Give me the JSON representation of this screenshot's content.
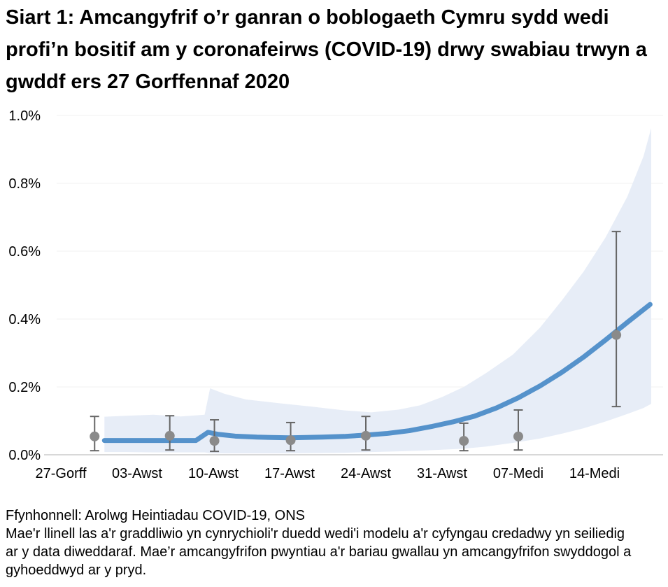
{
  "page": {
    "title": "Siart 1: Amcangyfrif o’r ganran o boblogaeth Cymru sydd wedi profi’n bositif am y coronafeirws (COVID-19) drwy swabiau trwyn a gwddf ers 27 Gorffennaf 2020",
    "source_line": "Ffynhonnell: Arolwg Heintiadau COVID-19, ONS",
    "note_line": "Mae'r llinell las a'r graddliwio yn cynrychioli'r duedd wedi'i modelu a'r cyfyngau credadwy yn seiliedig ar y data diweddaraf. Mae’r amcangyfrifon pwyntiau a'r bariau gwallau yn amcangyfrifon swyddogol a gyhoeddwyd ar y pryd."
  },
  "chart_data": {
    "type": "line",
    "title": "Siart 1: Amcangyfrif o’r ganran o boblogaeth Cymru sydd wedi profi’n bositif am y coronafeirws (COVID-19) drwy swabiau trwyn a gwddf ers 27 Gorffennaf 2020",
    "xlabel": "",
    "ylabel": "",
    "x_unit": "dyddiau ers 27 Gorffennaf 2020",
    "ylim": [
      0,
      1.0
    ],
    "grid": true,
    "legend": "none",
    "y_ticks": [
      {
        "value": 0.0,
        "label": "0.0%"
      },
      {
        "value": 0.2,
        "label": "0.2%"
      },
      {
        "value": 0.4,
        "label": "0.4%"
      },
      {
        "value": 0.6,
        "label": "0.6%"
      },
      {
        "value": 0.8,
        "label": "0.8%"
      },
      {
        "value": 1.0,
        "label": "1.0%"
      }
    ],
    "x_ticks": [
      {
        "day": 0,
        "label": "27-Gorff"
      },
      {
        "day": 7,
        "label": "03-Awst"
      },
      {
        "day": 14,
        "label": "10-Awst"
      },
      {
        "day": 21,
        "label": "17-Awst"
      },
      {
        "day": 28,
        "label": "24-Awst"
      },
      {
        "day": 35,
        "label": "31-Awst"
      },
      {
        "day": 42,
        "label": "07-Medi"
      },
      {
        "day": 49,
        "label": "14-Medi"
      }
    ],
    "series": [
      {
        "name": "duedd wedi'i modelu (llinell las)",
        "type": "line",
        "points": [
          [
            4,
            0.042
          ],
          [
            8,
            0.042
          ],
          [
            12.4,
            0.042
          ],
          [
            13.5,
            0.066
          ],
          [
            14.5,
            0.06
          ],
          [
            16,
            0.055
          ],
          [
            18,
            0.052
          ],
          [
            21,
            0.05
          ],
          [
            24,
            0.052
          ],
          [
            26,
            0.054
          ],
          [
            28,
            0.058
          ],
          [
            30,
            0.063
          ],
          [
            32,
            0.071
          ],
          [
            34,
            0.083
          ],
          [
            36,
            0.097
          ],
          [
            38,
            0.114
          ],
          [
            40,
            0.138
          ],
          [
            42,
            0.168
          ],
          [
            44,
            0.203
          ],
          [
            46,
            0.243
          ],
          [
            48,
            0.288
          ],
          [
            50,
            0.338
          ],
          [
            52,
            0.39
          ],
          [
            54.1,
            0.443
          ]
        ]
      },
      {
        "name": "cyfyngau credadwy (graddliwio)",
        "type": "band",
        "points_day_lower_upper": [
          [
            4,
            0.008,
            0.112
          ],
          [
            6,
            0.008,
            0.115
          ],
          [
            8.5,
            0.007,
            0.118
          ],
          [
            11,
            0.007,
            0.113
          ],
          [
            13.2,
            0.007,
            0.118
          ],
          [
            13.7,
            0.005,
            0.196
          ],
          [
            15,
            0.004,
            0.18
          ],
          [
            17,
            0.004,
            0.163
          ],
          [
            20,
            0.004,
            0.152
          ],
          [
            23,
            0.005,
            0.142
          ],
          [
            26,
            0.006,
            0.131
          ],
          [
            28.5,
            0.008,
            0.125
          ],
          [
            31,
            0.01,
            0.133
          ],
          [
            33,
            0.012,
            0.146
          ],
          [
            35,
            0.015,
            0.17
          ],
          [
            37,
            0.018,
            0.2
          ],
          [
            39,
            0.024,
            0.24
          ],
          [
            41.5,
            0.035,
            0.295
          ],
          [
            44,
            0.048,
            0.375
          ],
          [
            46,
            0.062,
            0.455
          ],
          [
            48,
            0.078,
            0.54
          ],
          [
            50,
            0.098,
            0.64
          ],
          [
            52,
            0.12,
            0.76
          ],
          [
            53.5,
            0.138,
            0.88
          ],
          [
            54.2,
            0.15,
            0.963
          ]
        ]
      },
      {
        "name": "amcangyfrifon pwyntiau swyddogol a bariau gwallau",
        "type": "scatter_errorbars",
        "points_day_est_lower_upper": [
          [
            3.1,
            0.054,
            0.012,
            0.113
          ],
          [
            10.0,
            0.056,
            0.014,
            0.115
          ],
          [
            14.1,
            0.041,
            0.01,
            0.103
          ],
          [
            21.1,
            0.043,
            0.012,
            0.095
          ],
          [
            28.0,
            0.056,
            0.014,
            0.113
          ],
          [
            37.0,
            0.041,
            0.012,
            0.093
          ],
          [
            42.0,
            0.054,
            0.014,
            0.132
          ],
          [
            51.0,
            0.353,
            0.142,
            0.658
          ]
        ]
      }
    ],
    "colors": {
      "trend_line": "#5592cb",
      "credible_band": "#e7edf7",
      "point_marker": "#8a8a8a",
      "error_bar": "#666666",
      "gridline": "#f2f2f2",
      "axis_line": "#cccccc",
      "text": "#000000"
    }
  }
}
